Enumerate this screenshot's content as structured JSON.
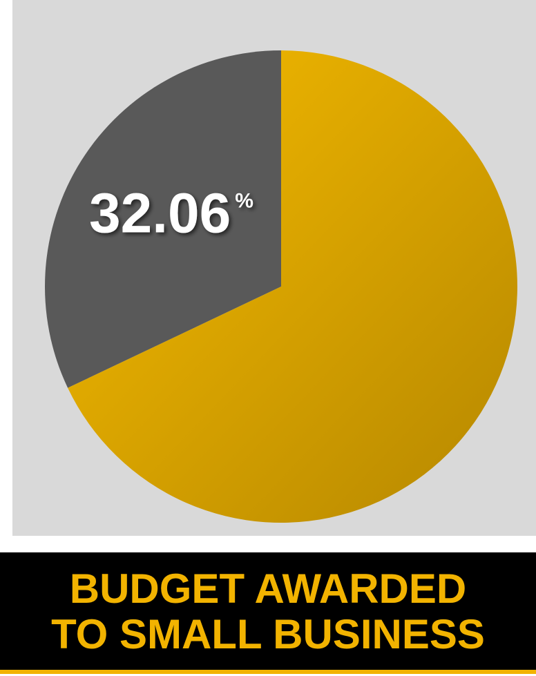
{
  "chart_data": {
    "type": "pie",
    "title": [
      "BUDGET AWARDED",
      "TO SMALL BUSINESS"
    ],
    "categories": [
      null,
      null
    ],
    "values": [
      32.06,
      67.94
    ],
    "value_labels": [
      "32.06%",
      null
    ],
    "colors": [
      "#595959",
      "#f2b300"
    ]
  }
}
